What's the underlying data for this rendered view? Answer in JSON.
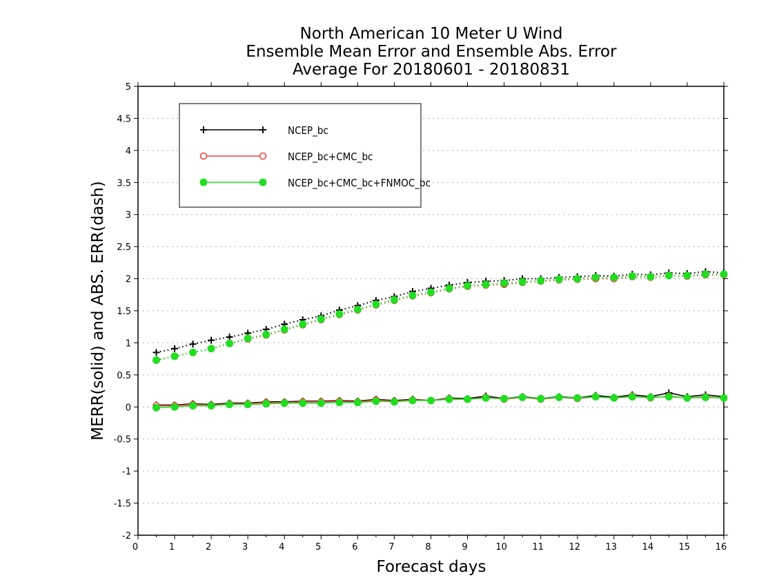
{
  "chart_data": {
    "type": "line",
    "title": [
      "North American 10 Meter U Wind",
      "Ensemble Mean Error and Ensemble Abs. Error",
      "Average For 20180601 - 20180831"
    ],
    "xlabel": "Forecast days",
    "ylabel": "MERR(solid) and ABS. ERR(dash)",
    "xlim": [
      0,
      16
    ],
    "ylim": [
      -2,
      5
    ],
    "xticks": [
      "0",
      "1",
      "2",
      "3",
      "4",
      "5",
      "6",
      "7",
      "8",
      "9",
      "10",
      "11",
      "12",
      "13",
      "14",
      "15",
      "16"
    ],
    "yticks": [
      "5",
      "4.5",
      "4",
      "3.5",
      "3",
      "2.5",
      "2",
      "1.5",
      "1",
      "0.5",
      "0",
      "-0.5",
      "-1",
      "-1.5",
      "-2"
    ],
    "grid": true,
    "legend_position": "top-left",
    "x": [
      0.5,
      1,
      1.5,
      2,
      2.5,
      3,
      3.5,
      4,
      4.5,
      5,
      5.5,
      6,
      6.5,
      7,
      7.5,
      8,
      8.5,
      9,
      9.5,
      10,
      10.5,
      11,
      11.5,
      12,
      12.5,
      13,
      13.5,
      14,
      14.5,
      15,
      15.5,
      16
    ],
    "series": [
      {
        "name": "NCEP_bc",
        "color": "#000000",
        "marker": "plus",
        "merr": [
          0.03,
          0.03,
          0.05,
          0.04,
          0.06,
          0.06,
          0.08,
          0.08,
          0.09,
          0.09,
          0.1,
          0.09,
          0.12,
          0.1,
          0.12,
          0.1,
          0.14,
          0.13,
          0.17,
          0.13,
          0.16,
          0.13,
          0.16,
          0.14,
          0.18,
          0.15,
          0.19,
          0.16,
          0.22,
          0.16,
          0.19,
          0.16
        ],
        "abserr": [
          0.85,
          0.91,
          0.98,
          1.04,
          1.09,
          1.15,
          1.21,
          1.29,
          1.36,
          1.42,
          1.51,
          1.58,
          1.66,
          1.72,
          1.8,
          1.85,
          1.9,
          1.94,
          1.96,
          1.97,
          2.0,
          2.0,
          2.02,
          2.03,
          2.05,
          2.04,
          2.07,
          2.06,
          2.09,
          2.08,
          2.11,
          2.09
        ]
      },
      {
        "name": "NCEP_bc+CMC_bc",
        "color": "#e8403c",
        "marker": "circle-open",
        "merr": [
          0.02,
          0.02,
          0.04,
          0.03,
          0.05,
          0.05,
          0.07,
          0.07,
          0.08,
          0.08,
          0.09,
          0.08,
          0.11,
          0.09,
          0.11,
          0.1,
          0.13,
          0.12,
          0.15,
          0.12,
          0.15,
          0.12,
          0.15,
          0.13,
          0.16,
          0.14,
          0.17,
          0.14,
          0.17,
          0.14,
          0.16,
          0.14
        ],
        "abserr": [
          0.73,
          0.79,
          0.85,
          0.91,
          0.99,
          1.06,
          1.12,
          1.2,
          1.28,
          1.36,
          1.44,
          1.51,
          1.59,
          1.66,
          1.73,
          1.78,
          1.84,
          1.88,
          1.9,
          1.91,
          1.94,
          1.96,
          1.98,
          1.99,
          2.0,
          2.0,
          2.03,
          2.02,
          2.05,
          2.04,
          2.06,
          2.06
        ]
      },
      {
        "name": "NCEP_bc+CMC_bc+FNMOC_bc",
        "color": "#22dd22",
        "marker": "circle-filled",
        "merr": [
          -0.01,
          0.0,
          0.02,
          0.02,
          0.04,
          0.04,
          0.05,
          0.06,
          0.06,
          0.06,
          0.07,
          0.07,
          0.09,
          0.08,
          0.1,
          0.1,
          0.12,
          0.12,
          0.14,
          0.13,
          0.15,
          0.13,
          0.15,
          0.14,
          0.16,
          0.14,
          0.16,
          0.15,
          0.16,
          0.14,
          0.15,
          0.14
        ],
        "abserr": [
          0.73,
          0.79,
          0.85,
          0.91,
          0.99,
          1.07,
          1.13,
          1.21,
          1.29,
          1.37,
          1.45,
          1.52,
          1.6,
          1.67,
          1.74,
          1.79,
          1.85,
          1.89,
          1.91,
          1.93,
          1.95,
          1.97,
          1.99,
          2.0,
          2.02,
          2.02,
          2.04,
          2.03,
          2.05,
          2.05,
          2.07,
          2.07
        ]
      }
    ]
  }
}
